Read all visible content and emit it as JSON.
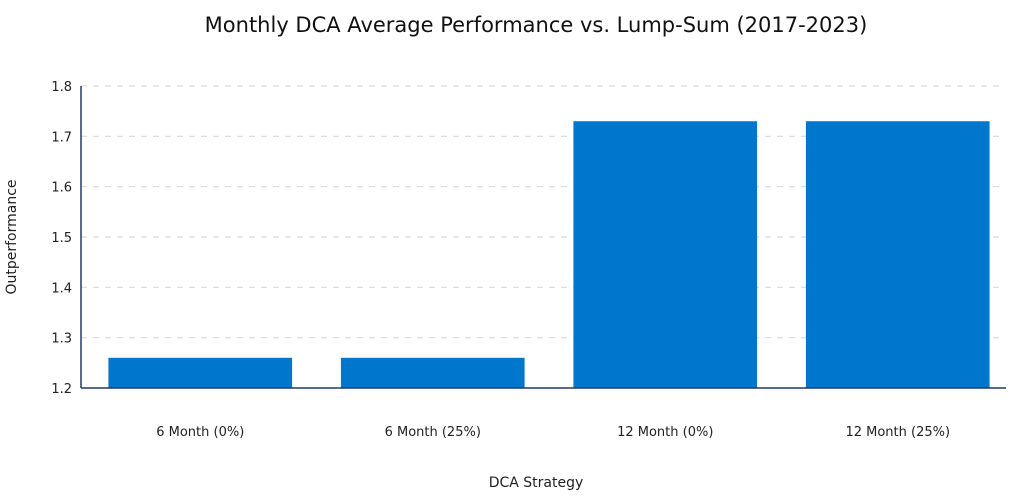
{
  "chart_data": {
    "type": "bar",
    "title": "Monthly DCA Average Performance vs. Lump-Sum (2017-2023)",
    "xlabel": "DCA Strategy",
    "ylabel": "Outperformance",
    "categories": [
      "6 Month (0%)",
      "6 Month (25%)",
      "12 Month (0%)",
      "12 Month (25%)"
    ],
    "values": [
      1.26,
      1.26,
      1.73,
      1.73
    ],
    "ylim": [
      1.2,
      1.8
    ],
    "yticks": [
      "1.2",
      "1.3",
      "1.4",
      "1.5",
      "1.6",
      "1.7",
      "1.8"
    ],
    "grid": true,
    "bar_color": "#0077cc",
    "grid_color": "#d9d9d9",
    "axis_color": "#1f3b63"
  }
}
